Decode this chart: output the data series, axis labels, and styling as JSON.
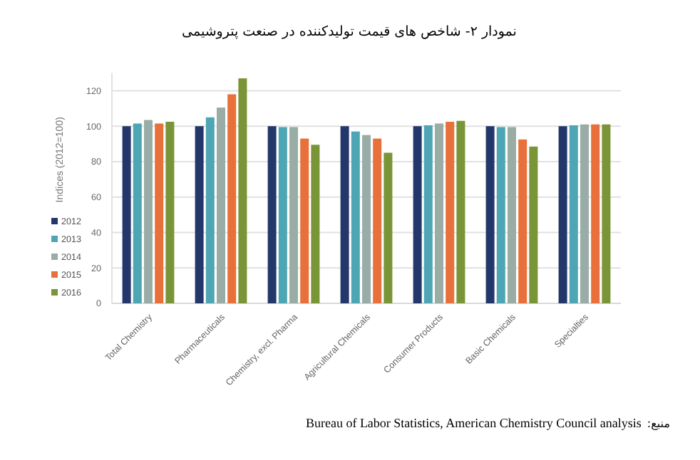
{
  "chart_data": {
    "type": "bar",
    "title": "نمودار ۲- شاخص های قیمت تولیدکننده در صنعت پتروشیمی",
    "ylabel": "Indices (2012=100)",
    "categories": [
      "Total Chemistry",
      "Pharmaceuticals",
      "Chemistry, excl. Pharma",
      "Agricultural Chemicals",
      "Consumer Products",
      "Basic Chemicals",
      "Specialties"
    ],
    "series": [
      {
        "name": "2012",
        "color": "#24376a",
        "values": [
          100,
          100,
          100,
          100,
          100,
          100,
          100
        ]
      },
      {
        "name": "2013",
        "color": "#4ea6b5",
        "values": [
          101.5,
          105,
          99.5,
          97,
          100.5,
          99.5,
          100.5
        ]
      },
      {
        "name": "2014",
        "color": "#9aaca6",
        "values": [
          103.5,
          110.5,
          99.5,
          95,
          101.5,
          99.5,
          101
        ]
      },
      {
        "name": "2015",
        "color": "#e8703a",
        "values": [
          101.5,
          118,
          93,
          93,
          102.5,
          92.5,
          101
        ]
      },
      {
        "name": "2016",
        "color": "#7a9438",
        "values": [
          102.5,
          127,
          89.5,
          85,
          103,
          88.5,
          101
        ]
      }
    ],
    "ylim": [
      0,
      130
    ],
    "yticks": [
      0,
      20,
      40,
      60,
      80,
      100,
      120
    ],
    "grid": "y",
    "legend": "left",
    "annotations": [
      "منبع:",
      "Bureau of Labor Statistics, American Chemistry Council analysis"
    ]
  }
}
